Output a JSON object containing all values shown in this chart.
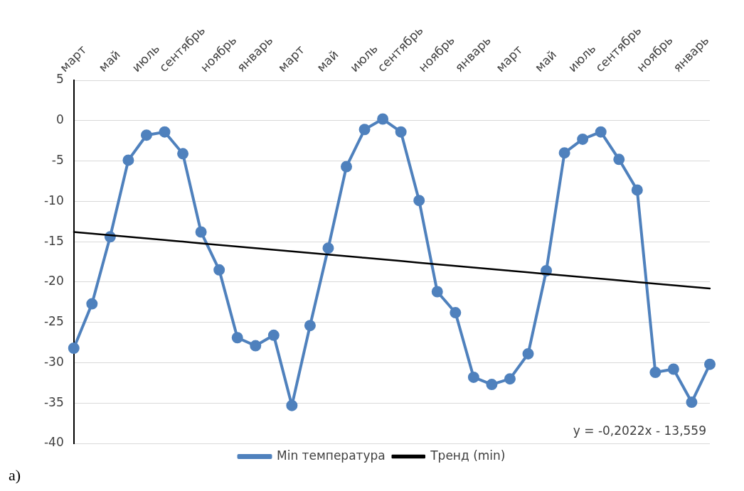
{
  "chart_data": {
    "type": "line",
    "categories": [
      "март",
      null,
      "май",
      null,
      "июль",
      null,
      "сентябрь",
      null,
      "ноябрь",
      null,
      "январь",
      null,
      "март",
      null,
      "май",
      null,
      "июль",
      null,
      "сентябрь",
      null,
      "ноябрь",
      null,
      "январь",
      null,
      "март",
      null,
      "май",
      null,
      "июль",
      null,
      "сентябрь",
      null,
      "ноябрь",
      null,
      "январь",
      null
    ],
    "series": [
      {
        "name": "Min температура",
        "color": "#4f81bd",
        "marker": "circle",
        "values": [
          -28.2,
          -22.7,
          -14.4,
          -4.9,
          -1.8,
          -1.4,
          -4.1,
          -13.8,
          -18.5,
          -26.9,
          -27.9,
          -26.6,
          -35.3,
          -25.4,
          -15.8,
          -5.7,
          -1.1,
          0.2,
          -1.4,
          -9.9,
          -21.2,
          -23.8,
          -31.8,
          -32.7,
          -32.0,
          -28.9,
          -18.6,
          -4.0,
          -2.3,
          -1.4,
          -4.8,
          -8.6,
          -31.2,
          -30.8,
          -34.9,
          -30.2
        ]
      },
      {
        "name": "Тренд (min)",
        "color": "#000000",
        "marker": "none",
        "values": [
          -13.8,
          -14.0,
          -14.2,
          -14.4,
          -14.6,
          -14.8,
          -15.0,
          -15.2,
          -15.4,
          -15.6,
          -15.8,
          -16.0,
          -16.2,
          -16.4,
          -16.6,
          -16.8,
          -17.0,
          -17.2,
          -17.4,
          -17.6,
          -17.8,
          -18.0,
          -18.2,
          -18.4,
          -18.6,
          -18.8,
          -19.0,
          -19.2,
          -19.4,
          -19.6,
          -19.8,
          -20.0,
          -20.2,
          -20.4,
          -20.6,
          -20.8
        ]
      }
    ],
    "ylim": [
      -40,
      5
    ],
    "yticks": [
      -40,
      -35,
      -30,
      -25,
      -20,
      -15,
      -10,
      -5,
      0,
      5
    ],
    "grid": "y",
    "legend": "bottom",
    "line_style": "solid",
    "annotations": [
      "y = -0,2022x - 13,559",
      "a)"
    ]
  }
}
